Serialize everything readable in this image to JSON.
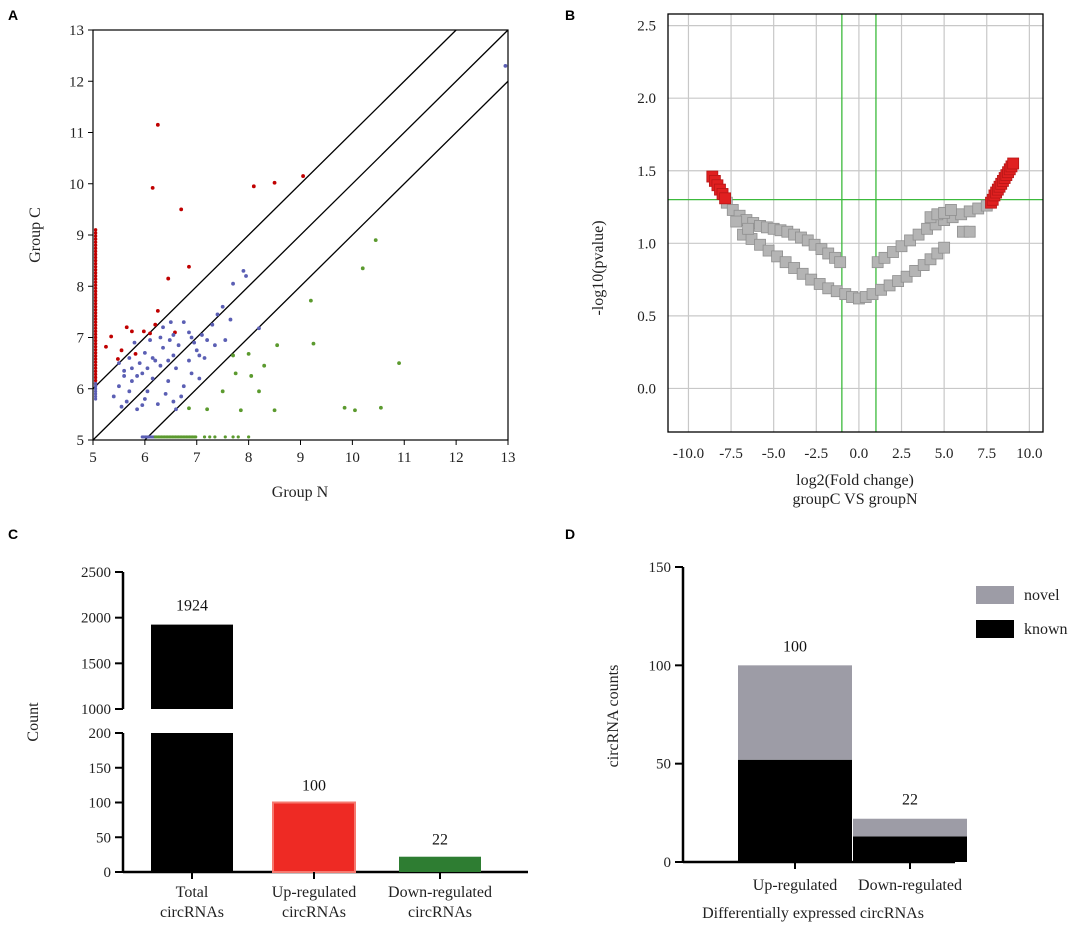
{
  "colors": {
    "red": "#c00000",
    "blue": "#5b5fb4",
    "green": "#5b9a2e",
    "volcano_red": "#e02020",
    "volcano_gray": "#b4b4b4",
    "volcano_line": "#3cba3c",
    "bar_black": "#000000",
    "bar_red": "#ee2a24",
    "bar_red_edge": "#f6796f",
    "bar_green": "#2e7d32",
    "novel_gray": "#9d9ca6",
    "known_black": "#000000"
  },
  "chart_data": [
    {
      "panel": "A",
      "type": "scatter",
      "xlabel": "Group N",
      "ylabel": "Group C",
      "xlim": [
        5,
        13
      ],
      "ylim": [
        5,
        13
      ],
      "xticks": [
        "5",
        "6",
        "7",
        "8",
        "9",
        "10",
        "11",
        "12",
        "13"
      ],
      "yticks": [
        "5",
        "6",
        "7",
        "8",
        "9",
        "10",
        "11",
        "12",
        "13"
      ],
      "reference_lines": [
        {
          "name": "upper",
          "offset": 1
        },
        {
          "name": "identity",
          "offset": 0
        },
        {
          "name": "lower",
          "offset": -1
        }
      ],
      "series": [
        {
          "name": "up",
          "color": "red",
          "points": [
            [
              6.25,
              11.15
            ],
            [
              6.15,
              9.92
            ],
            [
              8.1,
              9.95
            ],
            [
              8.5,
              10.02
            ],
            [
              9.05,
              10.15
            ],
            [
              6.7,
              9.5
            ],
            [
              6.85,
              8.38
            ],
            [
              6.45,
              8.15
            ],
            [
              6.25,
              7.52
            ],
            [
              5.65,
              7.2
            ],
            [
              5.75,
              7.12
            ],
            [
              5.55,
              6.75
            ],
            [
              5.82,
              6.68
            ],
            [
              5.98,
              7.12
            ],
            [
              6.1,
              7.08
            ],
            [
              6.2,
              7.25
            ],
            [
              6.58,
              7.1
            ],
            [
              5.35,
              7.02
            ],
            [
              5.25,
              6.82
            ],
            [
              5.48,
              6.58
            ]
          ]
        },
        {
          "name": "not-significant",
          "color": "blue",
          "points": [
            [
              12.95,
              12.3
            ],
            [
              7.9,
              8.3
            ],
            [
              7.95,
              8.2
            ],
            [
              7.7,
              8.05
            ],
            [
              7.5,
              7.6
            ],
            [
              7.4,
              7.45
            ],
            [
              7.65,
              7.35
            ],
            [
              8.2,
              7.18
            ],
            [
              7.1,
              7.05
            ],
            [
              7.35,
              6.85
            ],
            [
              7.55,
              6.95
            ],
            [
              6.55,
              7.05
            ],
            [
              6.65,
              6.85
            ],
            [
              6.75,
              7.3
            ],
            [
              6.85,
              7.1
            ],
            [
              6.95,
              6.9
            ],
            [
              7.05,
              6.65
            ],
            [
              6.45,
              6.55
            ],
            [
              6.35,
              6.8
            ],
            [
              6.2,
              6.55
            ],
            [
              6.1,
              6.95
            ],
            [
              6.0,
              6.7
            ],
            [
              5.9,
              6.5
            ],
            [
              5.8,
              6.9
            ],
            [
              5.7,
              6.6
            ],
            [
              5.6,
              6.35
            ],
            [
              5.5,
              6.05
            ],
            [
              5.4,
              5.85
            ],
            [
              5.55,
              5.65
            ],
            [
              5.7,
              5.95
            ],
            [
              5.85,
              6.25
            ],
            [
              6.0,
              5.8
            ],
            [
              6.15,
              6.2
            ],
            [
              6.3,
              6.45
            ],
            [
              6.45,
              6.15
            ],
            [
              6.6,
              6.4
            ],
            [
              6.75,
              6.05
            ],
            [
              6.9,
              6.3
            ],
            [
              7.05,
              6.2
            ],
            [
              7.2,
              6.95
            ],
            [
              7.3,
              7.25
            ],
            [
              6.5,
              7.3
            ],
            [
              6.3,
              7.0
            ],
            [
              5.95,
              6.3
            ],
            [
              5.75,
              6.15
            ],
            [
              5.65,
              5.75
            ],
            [
              5.85,
              5.6
            ],
            [
              6.05,
              5.95
            ],
            [
              6.25,
              5.7
            ],
            [
              6.4,
              5.9
            ],
            [
              6.55,
              5.75
            ],
            [
              6.7,
              5.85
            ],
            [
              6.85,
              6.55
            ],
            [
              7.0,
              6.75
            ],
            [
              6.15,
              6.6
            ],
            [
              6.55,
              6.65
            ],
            [
              6.35,
              7.2
            ],
            [
              6.05,
              6.4
            ],
            [
              5.75,
              6.4
            ],
            [
              5.5,
              6.5
            ],
            [
              5.95,
              5.68
            ],
            [
              6.6,
              5.6
            ],
            [
              6.48,
              6.95
            ],
            [
              7.15,
              6.6
            ],
            [
              6.9,
              7.0
            ],
            [
              5.6,
              6.25
            ]
          ]
        },
        {
          "name": "down",
          "color": "green",
          "points": [
            [
              10.45,
              8.9
            ],
            [
              10.2,
              8.35
            ],
            [
              9.2,
              7.72
            ],
            [
              9.25,
              6.88
            ],
            [
              10.9,
              6.5
            ],
            [
              8.55,
              6.85
            ],
            [
              8.0,
              6.68
            ],
            [
              7.7,
              6.65
            ],
            [
              7.75,
              6.3
            ],
            [
              8.05,
              6.25
            ],
            [
              8.3,
              6.45
            ],
            [
              8.2,
              5.95
            ],
            [
              7.5,
              5.95
            ],
            [
              9.85,
              5.63
            ],
            [
              10.05,
              5.58
            ],
            [
              10.55,
              5.63
            ],
            [
              8.5,
              5.58
            ],
            [
              7.85,
              5.58
            ],
            [
              7.2,
              5.6
            ],
            [
              6.85,
              5.62
            ]
          ]
        }
      ],
      "baseline_strip_x": {
        "blue_range": [
          5.95,
          6.2
        ],
        "green_range": [
          6.2,
          7.0
        ]
      },
      "left_strip": {
        "x": 5.05,
        "red_range": [
          6.1,
          9.15
        ],
        "blue_range": [
          5.8,
          6.1
        ]
      }
    },
    {
      "panel": "B",
      "type": "scatter",
      "xlabel": "log2(Fold change)",
      "xlabel2": "groupC VS groupN",
      "ylabel": "-log10(pvalue)",
      "xlim": [
        -11.2,
        10.8
      ],
      "ylim": [
        -0.3,
        2.58
      ],
      "xticks": [
        "-10.0",
        "-7.5",
        "-5.0",
        "-2.5",
        "0.0",
        "2.5",
        "5.0",
        "7.5",
        "10.0"
      ],
      "yticks": [
        "0.0",
        "0.5",
        "1.0",
        "1.5",
        "2.0",
        "2.5"
      ],
      "threshold_lines": {
        "x": [
          -1,
          1
        ],
        "y": 1.301
      },
      "series": [
        {
          "name": "significant",
          "color": "volcano_red",
          "points": [
            [
              -8.6,
              1.46
            ],
            [
              -8.45,
              1.43
            ],
            [
              -8.3,
              1.4
            ],
            [
              -8.15,
              1.37
            ],
            [
              -8.0,
              1.34
            ],
            [
              -7.85,
              1.31
            ],
            [
              7.75,
              1.28
            ],
            [
              7.85,
              1.3
            ],
            [
              7.95,
              1.33
            ],
            [
              8.05,
              1.35
            ],
            [
              8.15,
              1.37
            ],
            [
              8.25,
              1.39
            ],
            [
              8.35,
              1.41
            ],
            [
              8.45,
              1.43
            ],
            [
              8.55,
              1.45
            ],
            [
              8.65,
              1.47
            ],
            [
              8.75,
              1.49
            ],
            [
              8.85,
              1.51
            ],
            [
              8.95,
              1.53
            ],
            [
              9.05,
              1.55
            ]
          ]
        },
        {
          "name": "not-significant",
          "color": "volcano_gray",
          "points": [
            [
              -7.75,
              1.28
            ],
            [
              -7.4,
              1.23
            ],
            [
              -7.0,
              1.19
            ],
            [
              -6.6,
              1.16
            ],
            [
              -6.2,
              1.14
            ],
            [
              -5.8,
              1.12
            ],
            [
              -5.4,
              1.11
            ],
            [
              -5.0,
              1.1
            ],
            [
              -4.6,
              1.09
            ],
            [
              -4.2,
              1.08
            ],
            [
              -3.8,
              1.06
            ],
            [
              -3.4,
              1.04
            ],
            [
              -3.0,
              1.02
            ],
            [
              -2.6,
              0.99
            ],
            [
              -2.2,
              0.96
            ],
            [
              -1.8,
              0.93
            ],
            [
              -1.4,
              0.9
            ],
            [
              -1.1,
              0.87
            ],
            [
              -6.8,
              1.06
            ],
            [
              -6.3,
              1.03
            ],
            [
              -5.8,
              0.99
            ],
            [
              -5.3,
              0.95
            ],
            [
              -4.8,
              0.91
            ],
            [
              -4.3,
              0.87
            ],
            [
              -3.8,
              0.83
            ],
            [
              -3.3,
              0.79
            ],
            [
              -2.8,
              0.75
            ],
            [
              -2.3,
              0.72
            ],
            [
              -1.8,
              0.69
            ],
            [
              -1.3,
              0.67
            ],
            [
              -0.8,
              0.65
            ],
            [
              -0.4,
              0.63
            ],
            [
              0.0,
              0.62
            ],
            [
              0.4,
              0.63
            ],
            [
              0.8,
              0.65
            ],
            [
              1.3,
              0.68
            ],
            [
              1.8,
              0.71
            ],
            [
              2.3,
              0.74
            ],
            [
              2.8,
              0.77
            ],
            [
              3.3,
              0.81
            ],
            [
              3.8,
              0.85
            ],
            [
              4.2,
              0.89
            ],
            [
              4.6,
              0.93
            ],
            [
              5.0,
              0.97
            ],
            [
              1.1,
              0.87
            ],
            [
              1.5,
              0.9
            ],
            [
              2.0,
              0.94
            ],
            [
              2.5,
              0.98
            ],
            [
              3.0,
              1.02
            ],
            [
              3.5,
              1.06
            ],
            [
              4.0,
              1.1
            ],
            [
              4.5,
              1.13
            ],
            [
              5.0,
              1.16
            ],
            [
              5.5,
              1.18
            ],
            [
              6.0,
              1.2
            ],
            [
              6.5,
              1.22
            ],
            [
              7.0,
              1.24
            ],
            [
              7.5,
              1.26
            ],
            [
              4.2,
              1.18
            ],
            [
              4.6,
              1.2
            ],
            [
              5.0,
              1.21
            ],
            [
              5.4,
              1.23
            ],
            [
              6.1,
              1.08
            ],
            [
              6.5,
              1.08
            ],
            [
              -7.2,
              1.15
            ],
            [
              -6.5,
              1.1
            ]
          ]
        }
      ]
    },
    {
      "panel": "C",
      "type": "bar",
      "ylabel": "Count",
      "categories": [
        "Total circRNAs",
        "Up-regulated circRNAs",
        "Down-regulated circRNAs"
      ],
      "category_lines": [
        [
          "Total",
          "circRNAs"
        ],
        [
          "Up-regulated",
          "circRNAs"
        ],
        [
          "Down-regulated",
          "circRNAs"
        ]
      ],
      "values": [
        1924,
        100,
        22
      ],
      "labels": [
        "1924",
        "100",
        "22"
      ],
      "bar_colors": [
        "bar_black",
        "bar_red",
        "bar_green"
      ],
      "broken_axis": {
        "lower": {
          "range": [
            0,
            200
          ],
          "ticks": [
            "0",
            "50",
            "100",
            "150",
            "200"
          ]
        },
        "upper": {
          "range": [
            1000,
            2500
          ],
          "ticks": [
            "1000",
            "1500",
            "2000",
            "2500"
          ]
        }
      }
    },
    {
      "panel": "D",
      "type": "bar",
      "stacked": true,
      "xlabel": "Differentially expressed circRNAs",
      "ylabel": "circRNA counts",
      "categories": [
        "Up-regulated",
        "Down-regulated"
      ],
      "ylim": [
        0,
        150
      ],
      "yticks": [
        "0",
        "50",
        "100",
        "150"
      ],
      "series": [
        {
          "name": "known",
          "color": "known_black",
          "values": [
            52,
            13
          ]
        },
        {
          "name": "novel",
          "color": "novel_gray",
          "values": [
            48,
            9
          ]
        }
      ],
      "totals": [
        "100",
        "22"
      ],
      "legend": [
        "novel",
        "known"
      ]
    }
  ]
}
